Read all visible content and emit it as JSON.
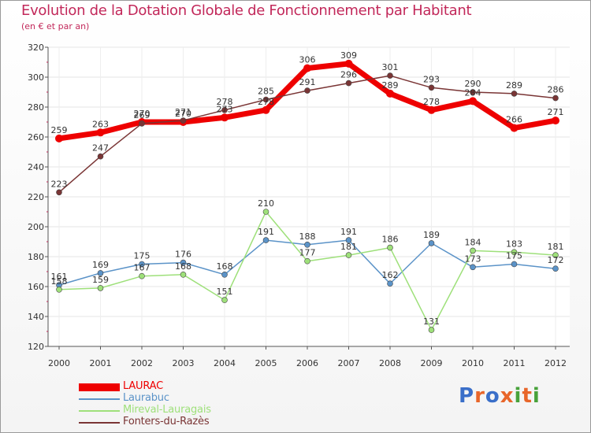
{
  "title": "Evolution de la Dotation Globale de Fonctionnement par Habitant",
  "subtitle": "(en € et par an)",
  "logo": {
    "text": "Proxiti",
    "letters": [
      "P",
      "r",
      "o",
      "x",
      "i",
      "t",
      "i"
    ],
    "colors": [
      "#3a6fc9",
      "#e8662a",
      "#3a6fc9",
      "#e8662a",
      "#48a23a",
      "#e8662a",
      "#48a23a"
    ]
  },
  "chart_data": {
    "type": "line",
    "x": [
      "2000",
      "2001",
      "2002",
      "2003",
      "2004",
      "2005",
      "2006",
      "2007",
      "2008",
      "2009",
      "2010",
      "2011",
      "2012"
    ],
    "ylim": [
      120,
      320
    ],
    "yticks": [
      "120",
      "140",
      "160",
      "180",
      "200",
      "220",
      "240",
      "260",
      "280",
      "300",
      "320"
    ],
    "series": [
      {
        "name": "LAURAC",
        "color": "#ee0000",
        "width": 7,
        "marker": 5,
        "values": [
          259,
          263,
          270,
          270,
          273,
          278,
          306,
          309,
          289,
          278,
          284,
          266,
          271
        ],
        "labels": [
          "259",
          "263",
          "270",
          "270",
          "273",
          "278",
          "306",
          "309",
          "289",
          "278",
          "284",
          "266",
          "271"
        ]
      },
      {
        "name": "Laurabuc",
        "color": "#5b93c8",
        "width": 1.5,
        "marker": 3.5,
        "values": [
          161,
          169,
          175,
          176,
          168,
          191,
          188,
          191,
          162,
          189,
          173,
          175,
          172
        ],
        "labels": [
          "161",
          "169",
          "175",
          "176",
          "168",
          "191",
          "188",
          "191",
          "162",
          "189",
          "173",
          "175",
          "172"
        ]
      },
      {
        "name": "Mireval-Lauragais",
        "color": "#9ee07a",
        "width": 1.5,
        "marker": 3.5,
        "values": [
          158,
          159,
          167,
          168,
          151,
          210,
          177,
          181,
          186,
          131,
          184,
          183,
          181
        ],
        "labels": [
          "158",
          "159",
          "167",
          "168",
          "151",
          "210",
          "177",
          "181",
          "186",
          "131",
          "184",
          "183",
          "181"
        ]
      },
      {
        "name": "Fonters-du-Razès",
        "color": "#7a3535",
        "width": 1.5,
        "marker": 3.5,
        "values": [
          223,
          247,
          269,
          271,
          278,
          285,
          291,
          296,
          301,
          293,
          290,
          289,
          286
        ],
        "labels": [
          "223",
          "247",
          "269",
          "271",
          "278",
          "285",
          "291",
          "296",
          "301",
          "293",
          "290",
          "289",
          "286"
        ]
      }
    ]
  }
}
